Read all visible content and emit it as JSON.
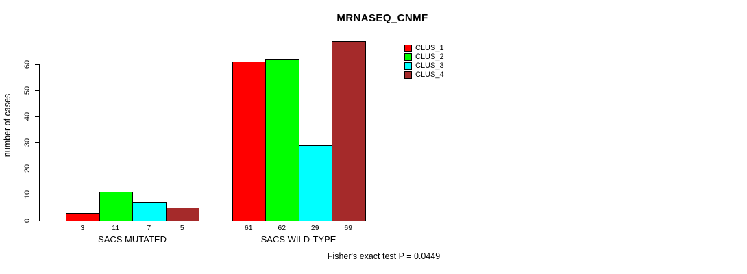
{
  "chart_data": {
    "type": "bar",
    "title": "MRNASEQ_CNMF",
    "ylabel": "number of cases",
    "xlabel": "",
    "ylim": [
      0,
      60
    ],
    "yticks": [
      0,
      10,
      20,
      30,
      40,
      50,
      60
    ],
    "grid": false,
    "legend_position": "top-right",
    "bar_border_color": "#000000",
    "categories": [
      "SACS MUTATED",
      "SACS WILD-TYPE"
    ],
    "series": [
      {
        "name": "CLUS_1",
        "color": "#FF0000",
        "values": [
          3,
          61
        ]
      },
      {
        "name": "CLUS_2",
        "color": "#00FF00",
        "values": [
          11,
          62
        ]
      },
      {
        "name": "CLUS_3",
        "color": "#00FFFF",
        "values": [
          7,
          29
        ]
      },
      {
        "name": "CLUS_4",
        "color": "#A52A2A",
        "values": [
          5,
          69
        ]
      }
    ],
    "bar_value_labels": {
      "SACS MUTATED": [
        3,
        11,
        7,
        5
      ],
      "SACS WILD-TYPE": [
        61,
        62,
        29,
        69
      ]
    },
    "footnote": "Fisher's exact test P = 0.0449"
  }
}
